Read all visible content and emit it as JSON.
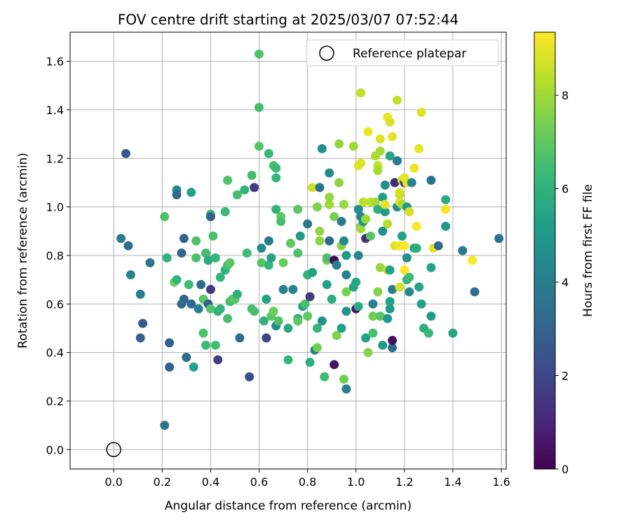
{
  "chart_data": {
    "type": "scatter",
    "title": "FOV centre drift starting at 2025/03/07 07:52:44",
    "xlabel": "Angular distance from reference (arcmin)",
    "ylabel": "Rotation from reference (arcmin)",
    "xlim": [
      -0.18,
      1.62
    ],
    "ylim": [
      -0.08,
      1.72
    ],
    "xticks": [
      0.0,
      0.2,
      0.4,
      0.6,
      0.8,
      1.0,
      1.2,
      1.4,
      1.6
    ],
    "xtick_labels": [
      "0.0",
      "0.2",
      "0.4",
      "0.6",
      "0.8",
      "1.0",
      "1.2",
      "1.4",
      "1.6"
    ],
    "yticks": [
      0.0,
      0.2,
      0.4,
      0.6,
      0.8,
      1.0,
      1.2,
      1.4,
      1.6
    ],
    "ytick_labels": [
      "0.0",
      "0.2",
      "0.4",
      "0.6",
      "0.8",
      "1.0",
      "1.2",
      "1.4",
      "1.6"
    ],
    "grid": true,
    "colormap": "viridis",
    "colorbar": {
      "label": "Hours from first FF file",
      "range": [
        0,
        9.35
      ],
      "ticks": [
        0,
        2,
        4,
        6,
        8
      ],
      "tick_labels": [
        "0",
        "2",
        "4",
        "6",
        "8"
      ]
    },
    "legend": {
      "position": "top-right",
      "entries": [
        {
          "label": "Reference platepar",
          "marker": "open-circle"
        }
      ]
    },
    "reference_point": {
      "x": 0.0,
      "y": 0.0
    },
    "points": [
      [
        0.03,
        0.87,
        3.9
      ],
      [
        0.05,
        1.22,
        2.6
      ],
      [
        0.06,
        0.84,
        3.2
      ],
      [
        0.07,
        0.72,
        4.2
      ],
      [
        0.11,
        0.64,
        3.9
      ],
      [
        0.12,
        0.52,
        2.7
      ],
      [
        0.11,
        0.46,
        2.9
      ],
      [
        0.15,
        0.77,
        3.6
      ],
      [
        0.21,
        0.96,
        6.7
      ],
      [
        0.21,
        0.1,
        3.6
      ],
      [
        0.22,
        0.79,
        6.0
      ],
      [
        0.23,
        0.34,
        2.9
      ],
      [
        0.23,
        0.44,
        2.9
      ],
      [
        0.25,
        0.69,
        7.3
      ],
      [
        0.26,
        0.7,
        6.1
      ],
      [
        0.26,
        1.07,
        4.4
      ],
      [
        0.26,
        1.05,
        3.1
      ],
      [
        0.28,
        0.81,
        3.0
      ],
      [
        0.29,
        0.62,
        3.0
      ],
      [
        0.28,
        0.6,
        3.1
      ],
      [
        0.29,
        0.87,
        3.0
      ],
      [
        0.3,
        0.38,
        3.3
      ],
      [
        0.31,
        0.68,
        6.4
      ],
      [
        0.32,
        0.6,
        3.2
      ],
      [
        0.32,
        1.06,
        5.3
      ],
      [
        0.33,
        0.34,
        5.3
      ],
      [
        0.34,
        0.79,
        6.6
      ],
      [
        0.34,
        0.86,
        6.7
      ],
      [
        0.35,
        0.58,
        4.1
      ],
      [
        0.36,
        0.68,
        3.1
      ],
      [
        0.37,
        0.62,
        6.9
      ],
      [
        0.37,
        0.48,
        6.7
      ],
      [
        0.38,
        0.43,
        6.4
      ],
      [
        0.38,
        0.81,
        6.5
      ],
      [
        0.39,
        0.6,
        3.0
      ],
      [
        0.39,
        0.78,
        5.7
      ],
      [
        0.4,
        0.58,
        6.8
      ],
      [
        0.4,
        0.66,
        1.6
      ],
      [
        0.4,
        0.97,
        6.4
      ],
      [
        0.4,
        0.96,
        3.0
      ],
      [
        0.41,
        0.88,
        6.6
      ],
      [
        0.42,
        0.43,
        6.5
      ],
      [
        0.42,
        0.79,
        6.1
      ],
      [
        0.43,
        0.37,
        1.8
      ],
      [
        0.43,
        0.57,
        5.9
      ],
      [
        0.44,
        0.71,
        6.1
      ],
      [
        0.44,
        0.58,
        6.1
      ],
      [
        0.46,
        0.74,
        6.0
      ],
      [
        0.46,
        0.98,
        6.3
      ],
      [
        0.47,
        1.11,
        6.7
      ],
      [
        0.47,
        0.54,
        6.6
      ],
      [
        0.47,
        0.76,
        6.6
      ],
      [
        0.48,
        0.61,
        6.4
      ],
      [
        0.48,
        0.77,
        6.9
      ],
      [
        0.49,
        0.62,
        6.8
      ],
      [
        0.5,
        0.62,
        6.9
      ],
      [
        0.51,
        1.05,
        6.5
      ],
      [
        0.51,
        0.64,
        6.0
      ],
      [
        0.52,
        0.46,
        3.3
      ],
      [
        0.54,
        1.07,
        6.1
      ],
      [
        0.55,
        0.81,
        6.4
      ],
      [
        0.56,
        0.3,
        2.2
      ],
      [
        0.57,
        0.58,
        6.6
      ],
      [
        0.57,
        1.13,
        6.5
      ],
      [
        0.58,
        0.57,
        6.6
      ],
      [
        0.58,
        1.08,
        1.6
      ],
      [
        0.6,
        1.63,
        6.7
      ],
      [
        0.6,
        1.41,
        6.5
      ],
      [
        0.6,
        1.25,
        6.8
      ],
      [
        0.61,
        0.83,
        4.5
      ],
      [
        0.61,
        0.77,
        6.8
      ],
      [
        0.62,
        0.53,
        5.9
      ],
      [
        0.63,
        0.46,
        1.9
      ],
      [
        0.63,
        0.62,
        5.4
      ],
      [
        0.64,
        0.76,
        6.1
      ],
      [
        0.64,
        0.86,
        3.9
      ],
      [
        0.64,
        1.22,
        6.3
      ],
      [
        0.65,
        0.55,
        6.9
      ],
      [
        0.65,
        0.79,
        5.4
      ],
      [
        0.66,
        1.17,
        6.6
      ],
      [
        0.66,
        0.57,
        7.2
      ],
      [
        0.67,
        1.16,
        6.3
      ],
      [
        0.67,
        1.12,
        6.2
      ],
      [
        0.67,
        0.99,
        6.1
      ],
      [
        0.67,
        0.51,
        4.5
      ],
      [
        0.68,
        0.53,
        6.7
      ],
      [
        0.69,
        0.96,
        7.0
      ],
      [
        0.69,
        0.94,
        6.6
      ],
      [
        0.7,
        0.66,
        4.1
      ],
      [
        0.7,
        0.77,
        7.2
      ],
      [
        0.72,
        0.5,
        5.6
      ],
      [
        0.72,
        0.37,
        6.2
      ],
      [
        0.73,
        0.85,
        7.0
      ],
      [
        0.74,
        0.66,
        4.2
      ],
      [
        0.76,
        0.54,
        5.6
      ],
      [
        0.76,
        0.53,
        6.9
      ],
      [
        0.76,
        0.81,
        6.7
      ],
      [
        0.76,
        0.99,
        6.9
      ],
      [
        0.77,
        0.88,
        5.1
      ],
      [
        0.78,
        0.59,
        5.4
      ],
      [
        0.79,
        0.6,
        6.6
      ],
      [
        0.8,
        0.55,
        7.0
      ],
      [
        0.8,
        0.93,
        3.8
      ],
      [
        0.8,
        0.72,
        6.1
      ],
      [
        0.81,
        0.63,
        1.6
      ],
      [
        0.81,
        0.36,
        5.9
      ],
      [
        0.82,
        1.08,
        8.6
      ],
      [
        0.82,
        0.73,
        5.4
      ],
      [
        0.83,
        0.41,
        4.1
      ],
      [
        0.84,
        0.42,
        7.3
      ],
      [
        0.84,
        1.0,
        7.5
      ],
      [
        0.84,
        0.5,
        6.2
      ],
      [
        0.85,
        1.08,
        3.6
      ],
      [
        0.85,
        0.9,
        7.8
      ],
      [
        0.85,
        0.86,
        7.7
      ],
      [
        0.86,
        1.24,
        4.6
      ],
      [
        0.86,
        0.53,
        4.8
      ],
      [
        0.87,
        0.3,
        6.4
      ],
      [
        0.88,
        0.78,
        7.4
      ],
      [
        0.88,
        0.79,
        6.6
      ],
      [
        0.88,
        0.68,
        5.3
      ],
      [
        0.89,
        1.01,
        8.0
      ],
      [
        0.89,
        0.86,
        3.1
      ],
      [
        0.89,
        1.14,
        4.5
      ],
      [
        0.89,
        1.04,
        7.8
      ],
      [
        0.9,
        0.62,
        5.8
      ],
      [
        0.91,
        0.96,
        7.4
      ],
      [
        0.91,
        0.78,
        0.3
      ],
      [
        0.91,
        0.35,
        0.5
      ],
      [
        0.92,
        0.47,
        7.5
      ],
      [
        0.92,
        0.76,
        4.2
      ],
      [
        0.93,
        1.26,
        7.8
      ],
      [
        0.93,
        1.1,
        7.7
      ],
      [
        0.94,
        0.94,
        3.8
      ],
      [
        0.94,
        0.5,
        5.3
      ],
      [
        0.94,
        0.84,
        7.6
      ],
      [
        0.95,
        0.86,
        4.6
      ],
      [
        0.95,
        1.01,
        7.9
      ],
      [
        0.95,
        0.29,
        7.3
      ],
      [
        0.96,
        0.65,
        7.4
      ],
      [
        0.96,
        0.57,
        4.7
      ],
      [
        0.96,
        0.72,
        4.1
      ],
      [
        0.96,
        0.8,
        5.1
      ],
      [
        0.96,
        0.25,
        4.0
      ],
      [
        0.99,
        1.25,
        8.0
      ],
      [
        0.99,
        0.67,
        5.4
      ],
      [
        1.0,
        0.69,
        5.6
      ],
      [
        1.0,
        0.58,
        0.7
      ],
      [
        1.01,
        0.59,
        5.8
      ],
      [
        1.01,
        0.8,
        4.3
      ],
      [
        1.01,
        0.99,
        4.6
      ],
      [
        1.01,
        1.17,
        8.9
      ],
      [
        1.02,
        0.96,
        4.2
      ],
      [
        1.02,
        1.47,
        8.5
      ],
      [
        1.02,
        1.18,
        8.8
      ],
      [
        1.02,
        0.92,
        7.3
      ],
      [
        1.02,
        0.91,
        8.0
      ],
      [
        1.03,
        0.94,
        4.8
      ],
      [
        1.03,
        1.02,
        8.4
      ],
      [
        1.04,
        0.87,
        1.3
      ],
      [
        1.04,
        0.46,
        5.4
      ],
      [
        1.04,
        0.95,
        7.9
      ],
      [
        1.05,
        0.4,
        7.6
      ],
      [
        1.05,
        1.31,
        9.1
      ],
      [
        1.06,
        0.88,
        6.9
      ],
      [
        1.06,
        1.02,
        8.4
      ],
      [
        1.07,
        0.48,
        6.6
      ],
      [
        1.07,
        0.55,
        7.3
      ],
      [
        1.07,
        0.6,
        4.1
      ],
      [
        1.08,
        1.21,
        8.2
      ],
      [
        1.08,
        1.02,
        8.1
      ],
      [
        1.09,
        0.99,
        5.9
      ],
      [
        1.09,
        0.65,
        7.6
      ],
      [
        1.09,
        1.17,
        8.5
      ],
      [
        1.09,
        1.15,
        8.1
      ],
      [
        1.1,
        1.28,
        8.9
      ],
      [
        1.1,
        0.55,
        6.9
      ],
      [
        1.1,
        0.75,
        7.9
      ],
      [
        1.1,
        1.23,
        8.1
      ],
      [
        1.11,
        1.04,
        5.3
      ],
      [
        1.11,
        0.9,
        4.7
      ],
      [
        1.11,
        0.43,
        5.1
      ],
      [
        1.12,
        0.98,
        5.1
      ],
      [
        1.12,
        1.09,
        4.6
      ],
      [
        1.12,
        1.01,
        9.0
      ],
      [
        1.13,
        0.74,
        8.5
      ],
      [
        1.13,
        0.93,
        8.3
      ],
      [
        1.13,
        0.54,
        5.0
      ],
      [
        1.13,
        1.37,
        9.1
      ],
      [
        1.14,
        1.35,
        8.8
      ],
      [
        1.14,
        0.58,
        5.0
      ],
      [
        1.14,
        0.61,
        5.3
      ],
      [
        1.14,
        0.74,
        5.4
      ],
      [
        1.14,
        1.21,
        5.5
      ],
      [
        1.15,
        1.29,
        9.0
      ],
      [
        1.15,
        0.42,
        3.1
      ],
      [
        1.15,
        0.66,
        4.0
      ],
      [
        1.15,
        0.45,
        0.4
      ],
      [
        1.16,
        1.1,
        1.2
      ],
      [
        1.16,
        0.84,
        8.9
      ],
      [
        1.17,
        1.44,
        8.5
      ],
      [
        1.17,
        1.0,
        4.4
      ],
      [
        1.17,
        1.19,
        3.8
      ],
      [
        1.18,
        1.06,
        8.9
      ],
      [
        1.18,
        0.84,
        9.1
      ],
      [
        1.18,
        1.02,
        9.0
      ],
      [
        1.18,
        0.67,
        8.7
      ],
      [
        1.18,
        1.05,
        8.7
      ],
      [
        1.19,
        0.88,
        5.4
      ],
      [
        1.19,
        1.11,
        8.6
      ],
      [
        1.19,
        1.01,
        8.1
      ],
      [
        1.2,
        0.84,
        9.3
      ],
      [
        1.2,
        1.1,
        1.5
      ],
      [
        1.2,
        0.74,
        9.3
      ],
      [
        1.2,
        1.12,
        9.0
      ],
      [
        1.21,
        0.79,
        4.6
      ],
      [
        1.21,
        1.1,
        9.0
      ],
      [
        1.21,
        1.0,
        5.1
      ],
      [
        1.21,
        0.7,
        6.1
      ],
      [
        1.22,
        0.65,
        4.4
      ],
      [
        1.22,
        0.71,
        6.4
      ],
      [
        1.22,
        0.98,
        8.7
      ],
      [
        1.23,
        1.1,
        4.2
      ],
      [
        1.24,
        0.83,
        5.6
      ],
      [
        1.24,
        1.16,
        9.1
      ],
      [
        1.25,
        0.92,
        9.3
      ],
      [
        1.25,
        0.83,
        5.8
      ],
      [
        1.26,
        0.67,
        5.5
      ],
      [
        1.26,
        1.24,
        9.0
      ],
      [
        1.27,
        0.6,
        5.3
      ],
      [
        1.27,
        1.39,
        8.9
      ],
      [
        1.28,
        0.5,
        5.9
      ],
      [
        1.3,
        0.48,
        6.3
      ],
      [
        1.31,
        0.55,
        5.1
      ],
      [
        1.31,
        1.11,
        3.6
      ],
      [
        1.31,
        0.75,
        5.4
      ],
      [
        1.32,
        0.83,
        9.0
      ],
      [
        1.34,
        0.84,
        3.2
      ],
      [
        1.37,
        1.03,
        5.6
      ],
      [
        1.37,
        0.92,
        5.1
      ],
      [
        1.37,
        0.99,
        9.2
      ],
      [
        1.4,
        0.48,
        5.5
      ],
      [
        1.44,
        0.82,
        3.8
      ],
      [
        1.48,
        0.78,
        9.3
      ],
      [
        1.49,
        0.65,
        3.4
      ],
      [
        1.59,
        0.87,
        3.5
      ]
    ]
  }
}
